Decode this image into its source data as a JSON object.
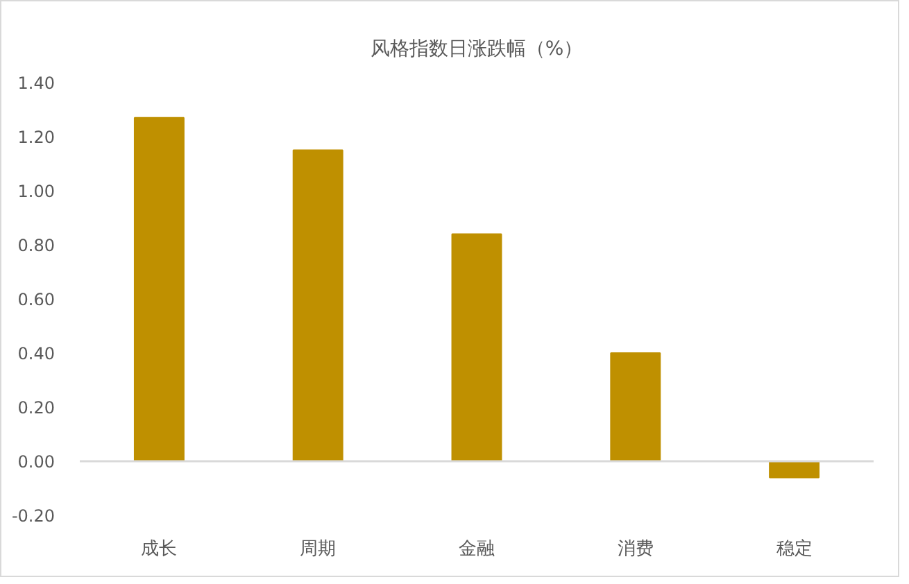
{
  "chart_data": {
    "type": "bar",
    "title": "风格指数日涨跌幅（%）",
    "categories": [
      "成长",
      "周期",
      "金融",
      "消费",
      "稳定"
    ],
    "values": [
      1.27,
      1.15,
      0.84,
      0.4,
      -0.06
    ],
    "color": "#bf9000",
    "ylim": [
      -0.2,
      1.4
    ],
    "yticks": [
      {
        "value": -0.2,
        "label": "-0.20"
      },
      {
        "value": 0,
        "label": "0.00"
      },
      {
        "value": 0.2,
        "label": "0.20"
      },
      {
        "value": 0.4,
        "label": "0.40"
      },
      {
        "value": 0.6,
        "label": "0.60"
      },
      {
        "value": 0.8,
        "label": "0.80"
      },
      {
        "value": 1.0,
        "label": "1.00"
      },
      {
        "value": 1.2,
        "label": "1.20"
      },
      {
        "value": 1.4,
        "label": "1.40"
      }
    ]
  }
}
